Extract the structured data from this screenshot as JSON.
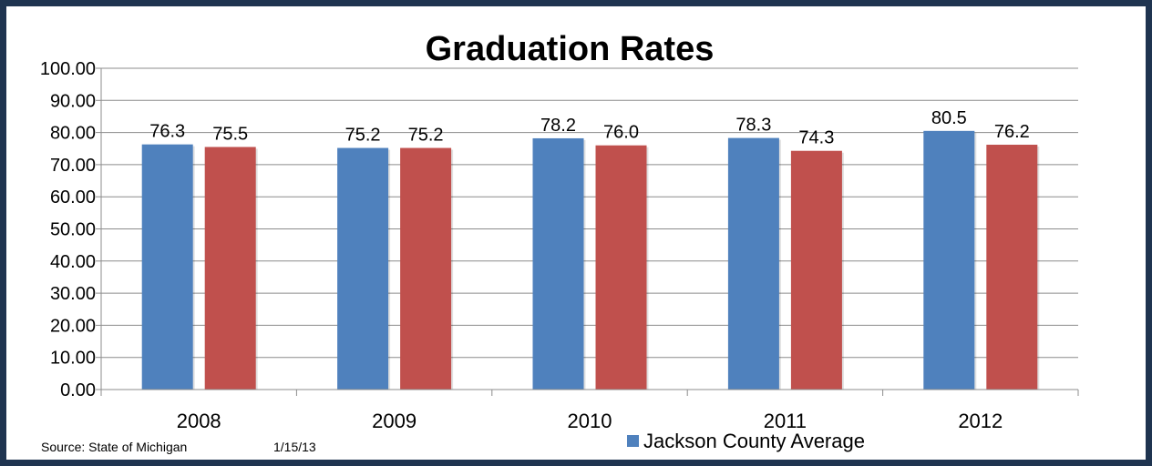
{
  "colors": {
    "frame": "#1f3450",
    "series_a": "#4f81bd",
    "series_b": "#c0504d",
    "grid": "#8c8c8c"
  },
  "footer": {
    "source": "Source:  State of Michigan",
    "date": "1/15/13"
  },
  "chart_data": {
    "type": "bar",
    "title": "Graduation Rates",
    "xlabel": "",
    "ylabel": "",
    "categories": [
      "2008",
      "2009",
      "2010",
      "2011",
      "2012"
    ],
    "series": [
      {
        "name": "Jackson County Average",
        "values": [
          76.3,
          75.2,
          78.2,
          78.3,
          80.5
        ],
        "labels": [
          "76.3",
          "75.2",
          "78.2",
          "78.3",
          "80.5"
        ]
      },
      {
        "name": "",
        "values": [
          75.5,
          75.2,
          76.0,
          74.3,
          76.2
        ],
        "labels": [
          "75.5",
          "75.2",
          "76.0",
          "74.3",
          "76.2"
        ]
      }
    ],
    "ylim": [
      0,
      100
    ],
    "yticks": [
      "0.00",
      "10.00",
      "20.00",
      "30.00",
      "40.00",
      "50.00",
      "60.00",
      "70.00",
      "80.00",
      "90.00",
      "100.00"
    ],
    "grid": true,
    "legend": [
      {
        "label": "Jackson County Average",
        "color": "#4f81bd"
      }
    ],
    "legend_position": "bottom"
  }
}
